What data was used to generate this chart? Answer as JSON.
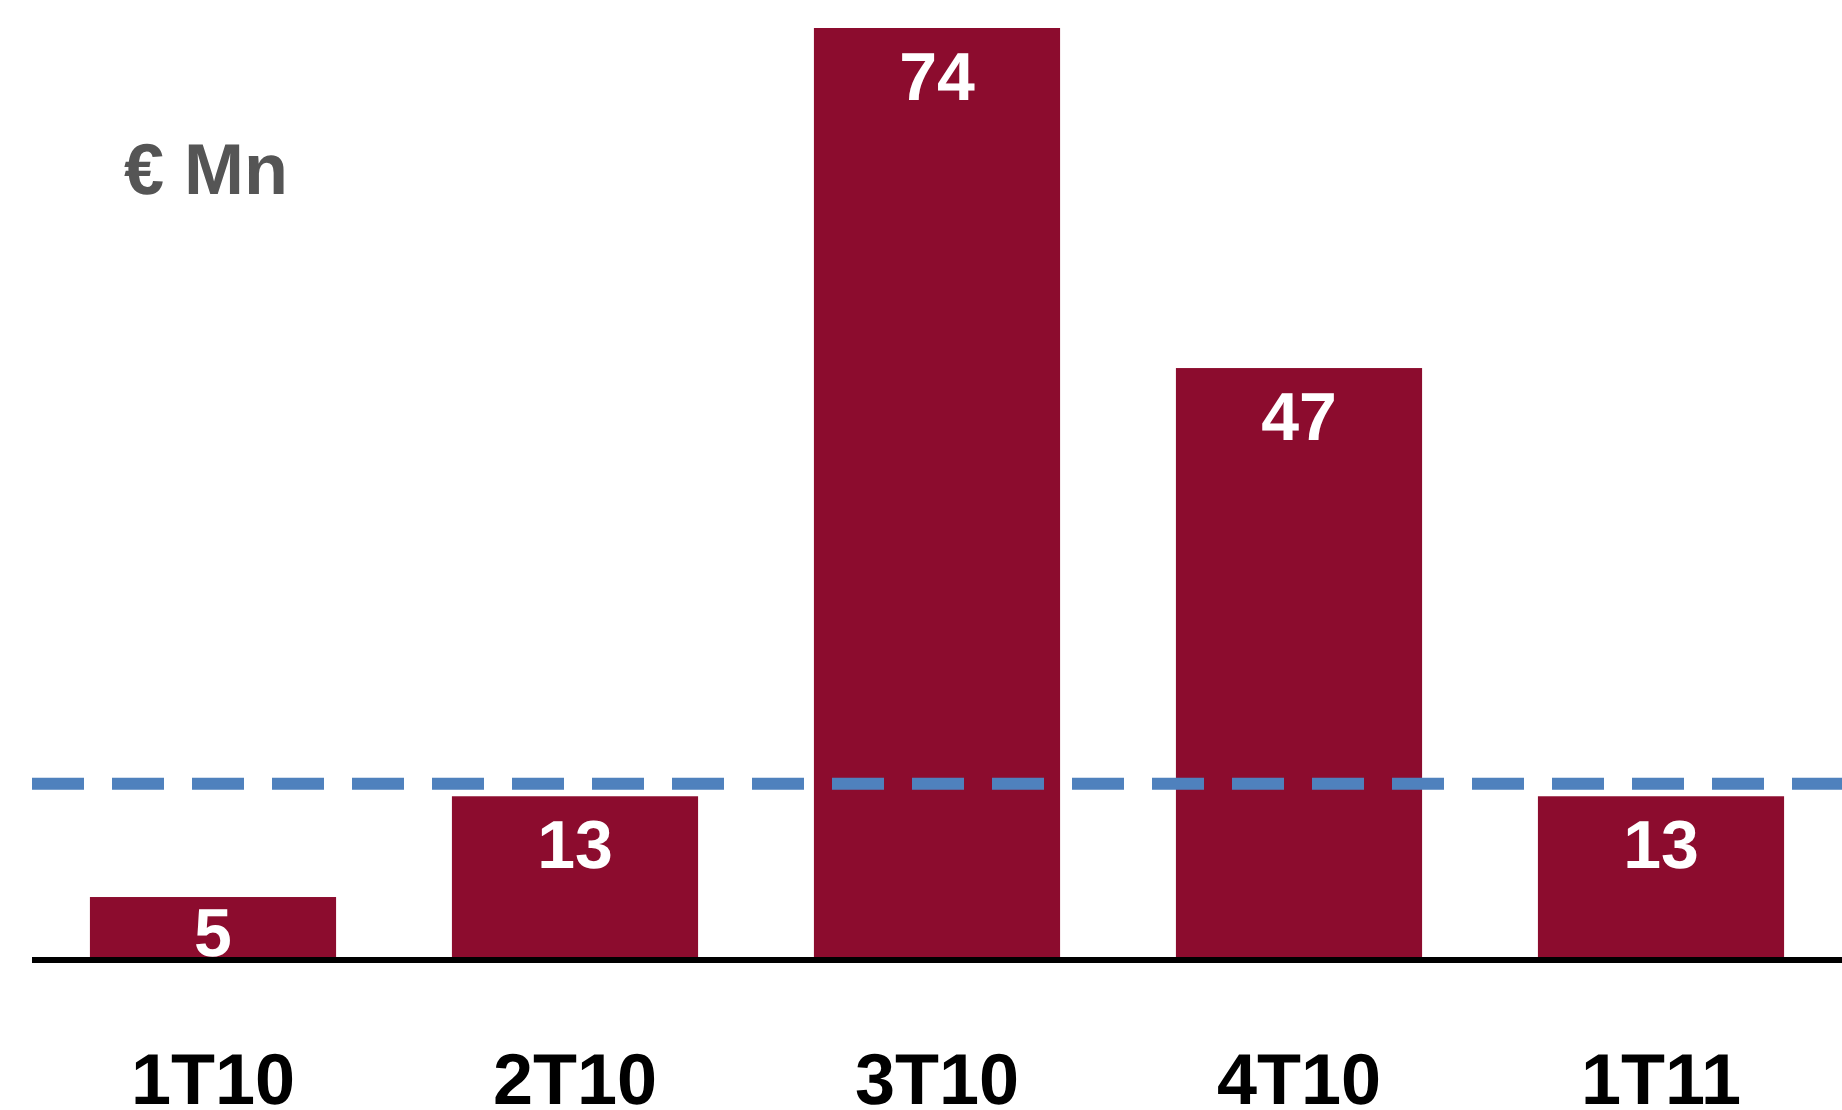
{
  "chart_data": {
    "type": "bar",
    "ylabel": "€ Mn",
    "categories": [
      "1T10",
      "2T10",
      "3T10",
      "4T10",
      "1T11"
    ],
    "values": [
      5,
      13,
      74,
      47,
      13
    ],
    "color": "#8c0c2e",
    "data_labels": true,
    "ylim": [
      0,
      74
    ],
    "ref_lines": [
      {
        "axis": "y",
        "value": 14,
        "color": "#4f81bd",
        "line_style": "dashed"
      }
    ]
  }
}
